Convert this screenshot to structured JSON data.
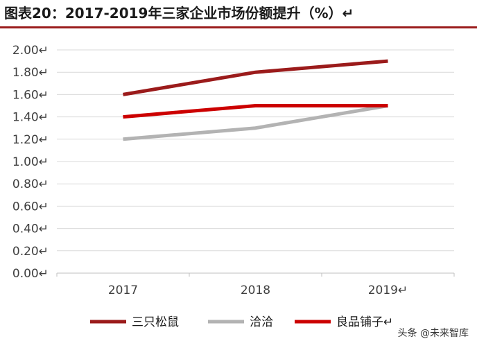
{
  "title": "图表20：2017-2019年三家企业市场份额提升（%）↵",
  "watermark": "头条 @未来智库",
  "chart_data": {
    "type": "line",
    "title": "图表20：2017-2019年三家企业市场份额提升（%）",
    "categories": [
      "2017",
      "2018",
      "2019"
    ],
    "category_labels": [
      "2017",
      "2018",
      "2019↵"
    ],
    "ylim": [
      0,
      2.0
    ],
    "yticks": [
      0.0,
      0.2,
      0.4,
      0.6,
      0.8,
      1.0,
      1.2,
      1.4,
      1.6,
      1.8,
      2.0
    ],
    "ytick_labels": [
      "0.00↵",
      "0.20↵",
      "0.40↵",
      "0.60↵",
      "0.80↵",
      "1.00↵",
      "1.20↵",
      "1.40↵",
      "1.60↵",
      "1.80↵",
      "2.00↵"
    ],
    "grid": true,
    "legend_position": "bottom",
    "series": [
      {
        "name": "三只松鼠",
        "legend_label": "三只松鼠",
        "color": "#9b1b1b",
        "values": [
          1.6,
          1.8,
          1.9
        ]
      },
      {
        "name": "洽洽",
        "legend_label": "洽洽",
        "color": "#b3b3b3",
        "values": [
          1.2,
          1.3,
          1.5
        ]
      },
      {
        "name": "良品铺子",
        "legend_label": "良品铺子↵",
        "color": "#cc0000",
        "values": [
          1.4,
          1.5,
          1.5
        ]
      }
    ]
  }
}
